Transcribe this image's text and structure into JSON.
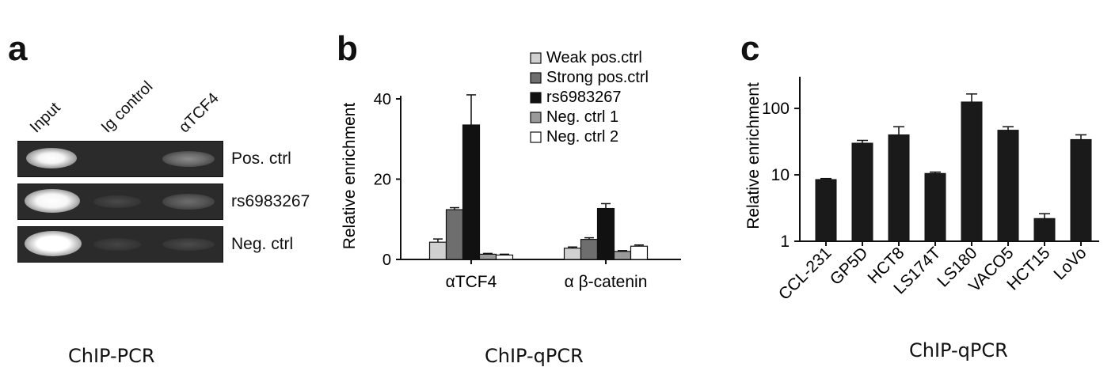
{
  "panel_a": {
    "letter": "a",
    "lanes": [
      "Input",
      "Ig control",
      "αTCF4"
    ],
    "rows": [
      "Pos. ctrl",
      "rs6983267",
      "Neg. ctrl"
    ],
    "caption": "ChIP-PCR"
  },
  "panel_b": {
    "letter": "b",
    "caption": "ChIP-qPCR"
  },
  "panel_c": {
    "letter": "c",
    "caption": "ChIP-qPCR"
  },
  "chart_data": [
    {
      "type": "bar",
      "ylabel": "Relative enrichment",
      "ylim": [
        0,
        40
      ],
      "yticks": [
        "0",
        "20",
        "40"
      ],
      "categories": [
        "αTCF4",
        "α β-catenin"
      ],
      "legend_position": "top-right",
      "series": [
        {
          "name": "Weak pos.ctrl",
          "color": "#d0d0d0",
          "values": [
            4.3,
            2.8
          ],
          "errors": [
            0.8,
            0.3
          ]
        },
        {
          "name": "Strong pos.ctrl",
          "color": "#6e6e6e",
          "values": [
            12.4,
            5.0
          ],
          "errors": [
            0.5,
            0.4
          ]
        },
        {
          "name": "rs6983267",
          "color": "#111111",
          "values": [
            33.5,
            12.7
          ],
          "errors": [
            7.5,
            1.2
          ]
        },
        {
          "name": "Neg. ctrl 1",
          "color": "#9a9a9a",
          "values": [
            1.3,
            2.0
          ],
          "errors": [
            0.2,
            0.2
          ]
        },
        {
          "name": "Neg. ctrl 2",
          "color": "#ffffff",
          "values": [
            1.1,
            3.3
          ],
          "errors": [
            0.2,
            0.3
          ]
        }
      ]
    },
    {
      "type": "bar",
      "ylabel": "Relative enrichment",
      "yscale": "log",
      "ylim": [
        1,
        100
      ],
      "yticks": [
        "1",
        "10",
        "100"
      ],
      "categories": [
        "CCL-231",
        "GP5D",
        "HCT8",
        "LS174T",
        "LS180",
        "VACO5",
        "HCT15",
        "LoVo"
      ],
      "series": [
        {
          "color": "#1a1a1a",
          "values": [
            8.5,
            30,
            40,
            10.5,
            125,
            47,
            2.2,
            34
          ],
          "errors": [
            0.3,
            3,
            13,
            0.5,
            40,
            6,
            0.4,
            6
          ]
        }
      ]
    }
  ]
}
